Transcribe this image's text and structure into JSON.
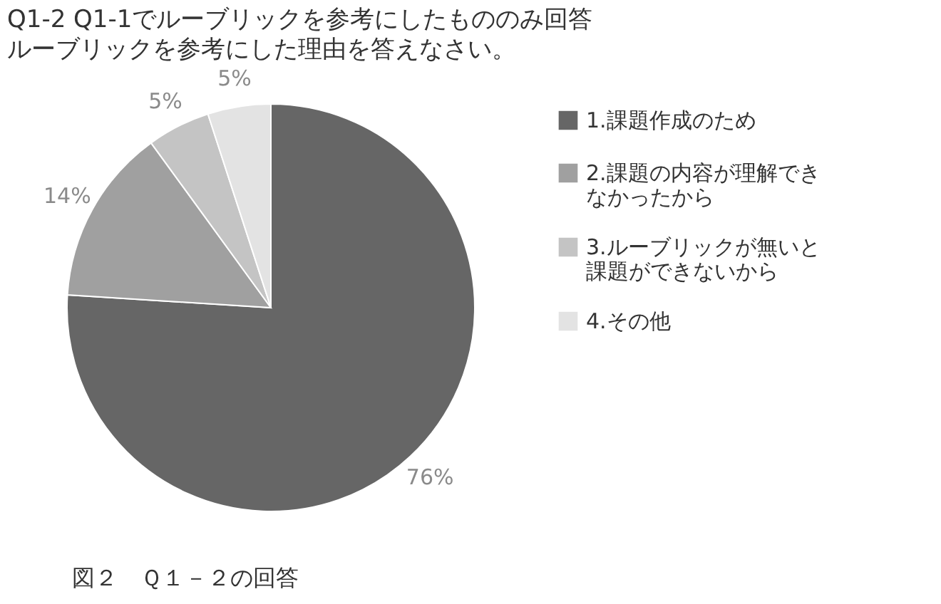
{
  "chart_data": {
    "type": "pie",
    "title": "Q1-2 Q1-1でルーブリックを参考にしたもののみ回答",
    "subtitle": "ルーブリックを参考にした理由を答えなさい。",
    "categories": [
      "1.課題作成のため",
      "2.課題の内容が理解できなかったから",
      "3.ルーブリックが無いと課題ができないから",
      "4.その他"
    ],
    "values": [
      76,
      14,
      5,
      5
    ],
    "colors": [
      "#666666",
      "#a0a0a0",
      "#c4c4c4",
      "#e3e3e3"
    ],
    "value_labels": [
      "76%",
      "14%",
      "5%",
      "5%"
    ],
    "legend": "right",
    "annotations": [
      "図２　Ｑ１－２の回答"
    ]
  }
}
